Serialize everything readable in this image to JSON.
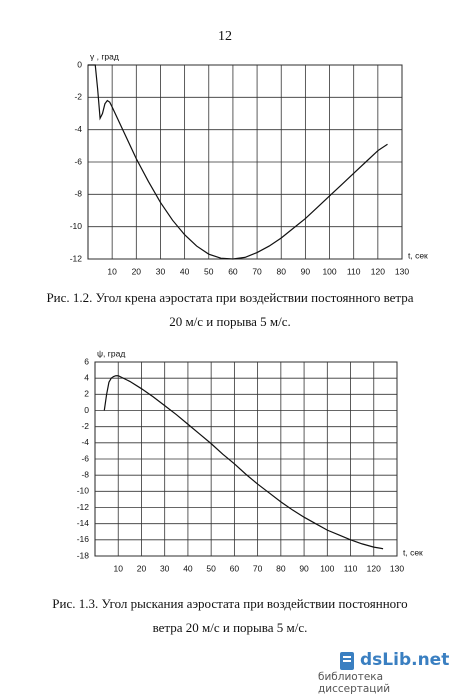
{
  "page_number": "12",
  "chart_data": [
    {
      "type": "line",
      "y_label": "γ , град",
      "x_label": "t, сек",
      "caption": "Рис. 1.2. Угол крена аэростата при воздействии постоянного ветра 20 м/с и порыва 5 м/с.",
      "x": [
        0,
        3,
        4,
        5,
        6,
        7,
        8,
        9,
        10,
        15,
        20,
        25,
        30,
        35,
        40,
        45,
        50,
        55,
        60,
        65,
        70,
        75,
        80,
        85,
        90,
        95,
        100,
        105,
        110,
        115,
        120,
        124
      ],
      "series": [
        {
          "color": "#111111",
          "values": [
            0,
            0,
            -1.5,
            -3.3,
            -3,
            -2.4,
            -2.2,
            -2.3,
            -2.6,
            -4.2,
            -5.8,
            -7.2,
            -8.5,
            -9.6,
            -10.5,
            -11.2,
            -11.7,
            -11.95,
            -12,
            -11.9,
            -11.6,
            -11.2,
            -10.7,
            -10.1,
            -9.5,
            -8.8,
            -8.1,
            -7.4,
            -6.7,
            -6,
            -5.3,
            -4.9
          ]
        }
      ],
      "xlim": [
        0,
        130
      ],
      "xticks": [
        10,
        20,
        30,
        40,
        50,
        60,
        70,
        80,
        90,
        100,
        110,
        120,
        130
      ],
      "ylim": [
        -12,
        0
      ],
      "yticks": [
        0,
        -2,
        -4,
        -6,
        -8,
        -10,
        -12
      ],
      "grid": true
    },
    {
      "type": "line",
      "y_label": "ψ, град",
      "x_label": "t, сек",
      "caption": "Рис. 1.3. Угол рыскания аэростата при воздействии постоянного ветра 20 м/с и порыва 5 м/с.",
      "x": [
        4,
        5,
        6,
        7,
        8,
        9,
        10,
        15,
        20,
        25,
        30,
        35,
        40,
        45,
        50,
        55,
        60,
        65,
        70,
        75,
        80,
        85,
        90,
        95,
        100,
        105,
        110,
        115,
        120,
        124
      ],
      "series": [
        {
          "color": "#111111",
          "values": [
            0,
            2,
            3.5,
            4,
            4.2,
            4.3,
            4.3,
            3.6,
            2.7,
            1.7,
            0.6,
            -0.5,
            -1.7,
            -2.9,
            -4.1,
            -5.4,
            -6.6,
            -7.9,
            -9.1,
            -10.2,
            -11.3,
            -12.3,
            -13.2,
            -14,
            -14.8,
            -15.4,
            -16,
            -16.5,
            -16.9,
            -17.1
          ]
        }
      ],
      "xlim": [
        0,
        130
      ],
      "xticks": [
        10,
        20,
        30,
        40,
        50,
        60,
        70,
        80,
        90,
        100,
        110,
        120,
        130
      ],
      "ylim": [
        -18,
        6
      ],
      "yticks": [
        6,
        4,
        2,
        0,
        -2,
        -4,
        -6,
        -8,
        -10,
        -12,
        -14,
        -16,
        -18
      ],
      "grid": true
    }
  ],
  "watermark": {
    "logo": "dsLib.net",
    "subtitle": "библиотека диссертаций"
  }
}
